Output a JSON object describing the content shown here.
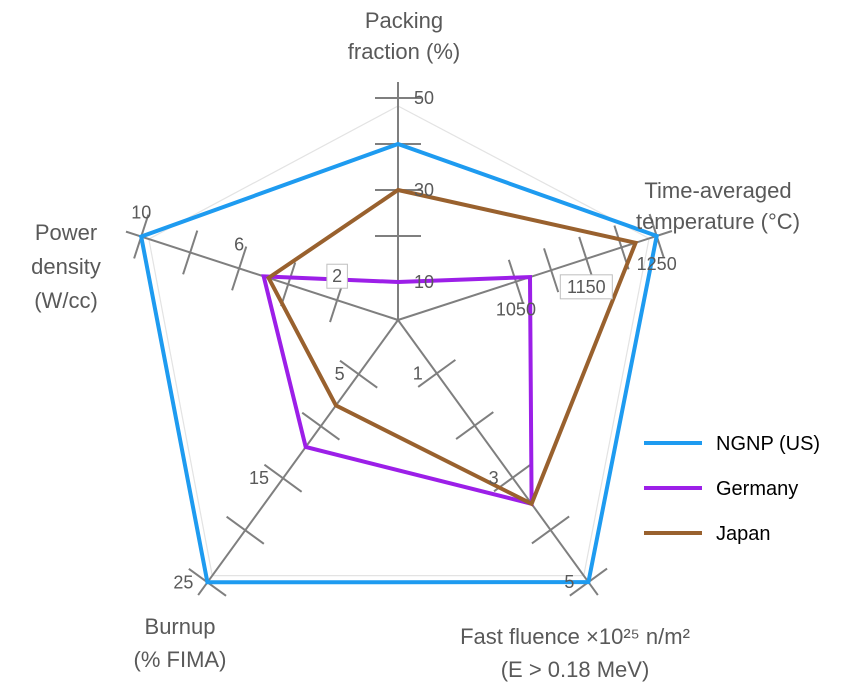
{
  "chart_data": {
    "type": "radar",
    "title": "",
    "axes": [
      {
        "name": "packing-fraction",
        "label_lines": [
          "Packing",
          "fraction (%)"
        ],
        "tick_values": [
          10,
          20,
          30,
          40,
          50
        ],
        "tick_labels": [
          "10",
          "",
          "30",
          "",
          "50"
        ]
      },
      {
        "name": "temperature",
        "label_lines": [
          "Time-averaged",
          "temperature (°C)"
        ],
        "tick_values": [
          1050,
          1100,
          1150,
          1200,
          1250
        ],
        "tick_labels": [
          "1050",
          "",
          "1150",
          "",
          "1250"
        ]
      },
      {
        "name": "fast-fluence",
        "label_lines": [
          "Fast fluence ×10²⁵ n/m²",
          "(E > 0.18 MeV)"
        ],
        "tick_values": [
          1,
          2,
          3,
          4,
          5
        ],
        "tick_labels": [
          "1",
          "",
          "3",
          "",
          "5"
        ]
      },
      {
        "name": "burnup",
        "label_lines": [
          "Burnup",
          "(% FIMA)"
        ],
        "tick_values": [
          5,
          10,
          15,
          20,
          25
        ],
        "tick_labels": [
          "5",
          "",
          "15",
          "",
          "25"
        ]
      },
      {
        "name": "power-density",
        "label_lines": [
          "Power",
          "density",
          "(W/cc)"
        ],
        "tick_values": [
          2,
          4,
          6,
          8,
          10
        ],
        "tick_labels": [
          "2",
          "",
          "6",
          "",
          "10"
        ]
      }
    ],
    "series": [
      {
        "name": "NGNP (US)",
        "color": "#1e9bf0",
        "values": [
          40,
          1250,
          5,
          25,
          10
        ]
      },
      {
        "name": "Germany",
        "color": "#9c1fe8",
        "values": [
          10,
          1070,
          3.5,
          12,
          5
        ]
      },
      {
        "name": "Japan",
        "color": "#99612e",
        "values": [
          30,
          1220,
          3.5,
          8,
          4.8
        ]
      }
    ],
    "legend_position": "right"
  }
}
